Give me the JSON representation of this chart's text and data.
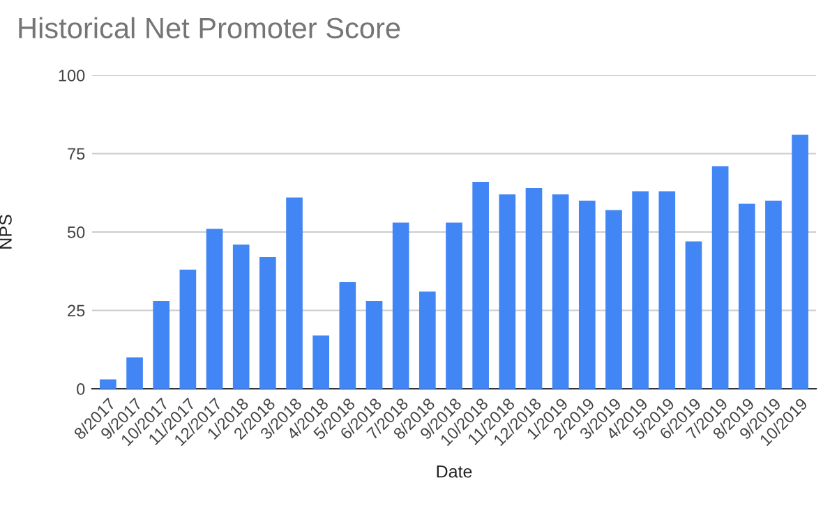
{
  "chart_data": {
    "type": "bar",
    "title": "Historical Net Promoter Score",
    "xlabel": "Date",
    "ylabel": "NPS",
    "categories": [
      "8/2017",
      "9/2017",
      "10/2017",
      "11/2017",
      "12/2017",
      "1/2018",
      "2/2018",
      "3/2018",
      "4/2018",
      "5/2018",
      "6/2018",
      "7/2018",
      "8/2018",
      "9/2018",
      "10/2018",
      "11/2018",
      "12/2018",
      "1/2019",
      "2/2019",
      "3/2019",
      "4/2019",
      "5/2019",
      "6/2019",
      "7/2019",
      "8/2019",
      "9/2019",
      "10/2019"
    ],
    "values": [
      3,
      10,
      28,
      38,
      51,
      46,
      42,
      61,
      17,
      34,
      28,
      53,
      31,
      53,
      66,
      62,
      64,
      62,
      60,
      57,
      63,
      63,
      47,
      71,
      59,
      60,
      81
    ],
    "color": "#4285f4",
    "ylim": [
      0,
      100
    ],
    "yticks": [
      0,
      25,
      50,
      75,
      100
    ],
    "grid": "y"
  }
}
